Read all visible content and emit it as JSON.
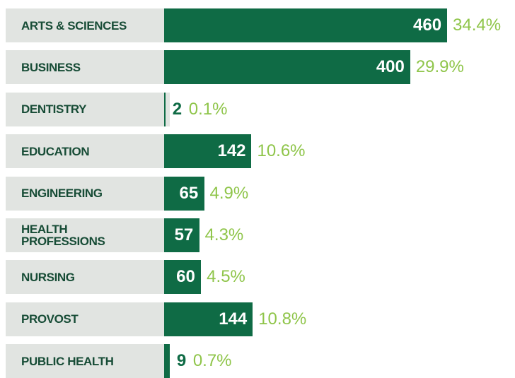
{
  "chart_data": {
    "type": "bar",
    "orientation": "horizontal",
    "categories": [
      "ARTS & SCIENCES",
      "BUSINESS",
      "DENTISTRY",
      "EDUCATION",
      "ENGINEERING",
      "HEALTH PROFESSIONS",
      "NURSING",
      "PROVOST",
      "PUBLIC HEALTH"
    ],
    "values": [
      460,
      400,
      2,
      142,
      65,
      57,
      60,
      144,
      9
    ],
    "percent_labels": [
      "34.4%",
      "29.9%",
      "0.1%",
      "10.6%",
      "4.9%",
      "4.3%",
      "4.5%",
      "10.8%",
      "0.7%"
    ],
    "color": "#0f6b45"
  }
}
